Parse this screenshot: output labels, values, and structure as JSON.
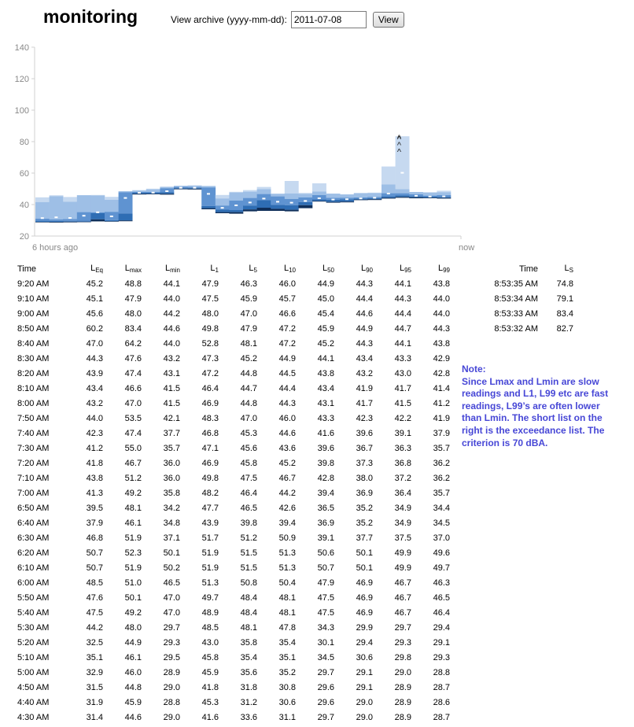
{
  "header": {
    "title": "monitoring",
    "archive_label": "View archive (yyyy-mm-dd):",
    "archive_value": "2011-07-08",
    "view_button": "View"
  },
  "chart": {
    "y_ticks": [
      "140",
      "120",
      "100",
      "80",
      "60",
      "40",
      "20"
    ],
    "x_left_label": "6 hours ago",
    "x_right_label": "now",
    "colors": {
      "lmax_band": "#c6d9f0",
      "l1_band": "#9ebfe6",
      "l10_band": "#5f93d1",
      "l50_band": "#2e6db4",
      "l90_band": "#0f2f5a",
      "leq_mark": "#ffffff",
      "grid": "#d0d0d0"
    }
  },
  "chart_data": {
    "type": "area",
    "x_start": "6 hours ago",
    "x_end": "now",
    "ylim": [
      20,
      140
    ],
    "y_ticks": [
      20,
      40,
      60,
      80,
      100,
      120,
      140
    ],
    "grid": false,
    "series_keys": [
      "Lmax",
      "L1",
      "L10",
      "L50",
      "L90",
      "Lmin",
      "LEq"
    ]
  },
  "table": {
    "headers": [
      {
        "base": "Time",
        "sub": ""
      },
      {
        "base": "L",
        "sub": "Eq"
      },
      {
        "base": "L",
        "sub": "max"
      },
      {
        "base": "L",
        "sub": "min"
      },
      {
        "base": "L",
        "sub": "1"
      },
      {
        "base": "L",
        "sub": "5"
      },
      {
        "base": "L",
        "sub": "10"
      },
      {
        "base": "L",
        "sub": "50"
      },
      {
        "base": "L",
        "sub": "90"
      },
      {
        "base": "L",
        "sub": "95"
      },
      {
        "base": "L",
        "sub": "99"
      }
    ],
    "rows": [
      [
        "9:20 AM",
        "45.2",
        "48.8",
        "44.1",
        "47.9",
        "46.3",
        "46.0",
        "44.9",
        "44.3",
        "44.1",
        "43.8"
      ],
      [
        "9:10 AM",
        "45.1",
        "47.9",
        "44.0",
        "47.5",
        "45.9",
        "45.7",
        "45.0",
        "44.4",
        "44.3",
        "44.0"
      ],
      [
        "9:00 AM",
        "45.6",
        "48.0",
        "44.2",
        "48.0",
        "47.0",
        "46.6",
        "45.4",
        "44.6",
        "44.4",
        "44.0"
      ],
      [
        "8:50 AM",
        "60.2",
        "83.4",
        "44.6",
        "49.8",
        "47.9",
        "47.2",
        "45.9",
        "44.9",
        "44.7",
        "44.3"
      ],
      [
        "8:40 AM",
        "47.0",
        "64.2",
        "44.0",
        "52.8",
        "48.1",
        "47.2",
        "45.2",
        "44.3",
        "44.1",
        "43.8"
      ],
      [
        "8:30 AM",
        "44.3",
        "47.6",
        "43.2",
        "47.3",
        "45.2",
        "44.9",
        "44.1",
        "43.4",
        "43.3",
        "42.9"
      ],
      [
        "8:20 AM",
        "43.9",
        "47.4",
        "43.1",
        "47.2",
        "44.8",
        "44.5",
        "43.8",
        "43.2",
        "43.0",
        "42.8"
      ],
      [
        "8:10 AM",
        "43.4",
        "46.6",
        "41.5",
        "46.4",
        "44.7",
        "44.4",
        "43.4",
        "41.9",
        "41.7",
        "41.4"
      ],
      [
        "8:00 AM",
        "43.2",
        "47.0",
        "41.5",
        "46.9",
        "44.8",
        "44.3",
        "43.1",
        "41.7",
        "41.5",
        "41.2"
      ],
      [
        "7:50 AM",
        "44.0",
        "53.5",
        "42.1",
        "48.3",
        "47.0",
        "46.0",
        "43.3",
        "42.3",
        "42.2",
        "41.9"
      ],
      [
        "7:40 AM",
        "42.3",
        "47.4",
        "37.7",
        "46.8",
        "45.3",
        "44.6",
        "41.6",
        "39.6",
        "39.1",
        "37.9"
      ],
      [
        "7:30 AM",
        "41.2",
        "55.0",
        "35.7",
        "47.1",
        "45.6",
        "43.6",
        "39.6",
        "36.7",
        "36.3",
        "35.7"
      ],
      [
        "7:20 AM",
        "41.8",
        "46.7",
        "36.0",
        "46.9",
        "45.8",
        "45.2",
        "39.8",
        "37.3",
        "36.8",
        "36.2"
      ],
      [
        "7:10 AM",
        "43.8",
        "51.2",
        "36.0",
        "49.8",
        "47.5",
        "46.7",
        "42.8",
        "38.0",
        "37.2",
        "36.2"
      ],
      [
        "7:00 AM",
        "41.3",
        "49.2",
        "35.8",
        "48.2",
        "46.4",
        "44.2",
        "39.4",
        "36.9",
        "36.4",
        "35.7"
      ],
      [
        "6:50 AM",
        "39.5",
        "48.1",
        "34.2",
        "47.7",
        "46.5",
        "42.6",
        "36.5",
        "35.2",
        "34.9",
        "34.4"
      ],
      [
        "6:40 AM",
        "37.9",
        "46.1",
        "34.8",
        "43.9",
        "39.8",
        "39.4",
        "36.9",
        "35.2",
        "34.9",
        "34.5"
      ],
      [
        "6:30 AM",
        "46.8",
        "51.9",
        "37.1",
        "51.7",
        "51.2",
        "50.9",
        "39.1",
        "37.7",
        "37.5",
        "37.0"
      ],
      [
        "6:20 AM",
        "50.7",
        "52.3",
        "50.1",
        "51.9",
        "51.5",
        "51.3",
        "50.6",
        "50.1",
        "49.9",
        "49.6"
      ],
      [
        "6:10 AM",
        "50.7",
        "51.9",
        "50.2",
        "51.9",
        "51.5",
        "51.3",
        "50.7",
        "50.1",
        "49.9",
        "49.7"
      ],
      [
        "6:00 AM",
        "48.5",
        "51.0",
        "46.5",
        "51.3",
        "50.8",
        "50.4",
        "47.9",
        "46.9",
        "46.7",
        "46.3"
      ],
      [
        "5:50 AM",
        "47.6",
        "50.1",
        "47.0",
        "49.7",
        "48.4",
        "48.1",
        "47.5",
        "46.9",
        "46.7",
        "46.5"
      ],
      [
        "5:40 AM",
        "47.5",
        "49.2",
        "47.0",
        "48.9",
        "48.4",
        "48.1",
        "47.5",
        "46.9",
        "46.7",
        "46.4"
      ],
      [
        "5:30 AM",
        "44.2",
        "48.0",
        "29.7",
        "48.5",
        "48.1",
        "47.8",
        "34.3",
        "29.9",
        "29.7",
        "29.4"
      ],
      [
        "5:20 AM",
        "32.5",
        "44.9",
        "29.3",
        "43.0",
        "35.8",
        "35.4",
        "30.1",
        "29.4",
        "29.3",
        "29.1"
      ],
      [
        "5:10 AM",
        "35.1",
        "46.1",
        "29.5",
        "45.8",
        "35.4",
        "35.1",
        "34.5",
        "30.6",
        "29.8",
        "29.3"
      ],
      [
        "5:00 AM",
        "32.9",
        "46.0",
        "28.9",
        "45.9",
        "35.6",
        "35.2",
        "29.7",
        "29.1",
        "29.0",
        "28.8"
      ],
      [
        "4:50 AM",
        "31.5",
        "44.8",
        "29.0",
        "41.8",
        "31.8",
        "30.8",
        "29.6",
        "29.1",
        "28.9",
        "28.7"
      ],
      [
        "4:40 AM",
        "31.9",
        "45.9",
        "28.8",
        "45.3",
        "31.2",
        "30.6",
        "29.6",
        "29.0",
        "28.9",
        "28.6"
      ],
      [
        "4:30 AM",
        "31.4",
        "44.6",
        "29.0",
        "41.6",
        "33.6",
        "31.1",
        "29.7",
        "29.0",
        "28.9",
        "28.7"
      ]
    ]
  },
  "exceedance": {
    "headers": [
      {
        "base": "Time",
        "sub": ""
      },
      {
        "base": "L",
        "sub": "S"
      }
    ],
    "rows": [
      [
        "8:53:35 AM",
        "74.8"
      ],
      [
        "8:53:34 AM",
        "79.1"
      ],
      [
        "8:53:33 AM",
        "83.4"
      ],
      [
        "8:53:32 AM",
        "82.7"
      ]
    ]
  },
  "note": {
    "title": "Note:",
    "body": "Since Lmax and Lmin are slow readings and L1, L99 etc are fast readings, L99’s are often lower than Lmin. The short list on the right is the exceedance list. The criterion is 70 dBA."
  }
}
